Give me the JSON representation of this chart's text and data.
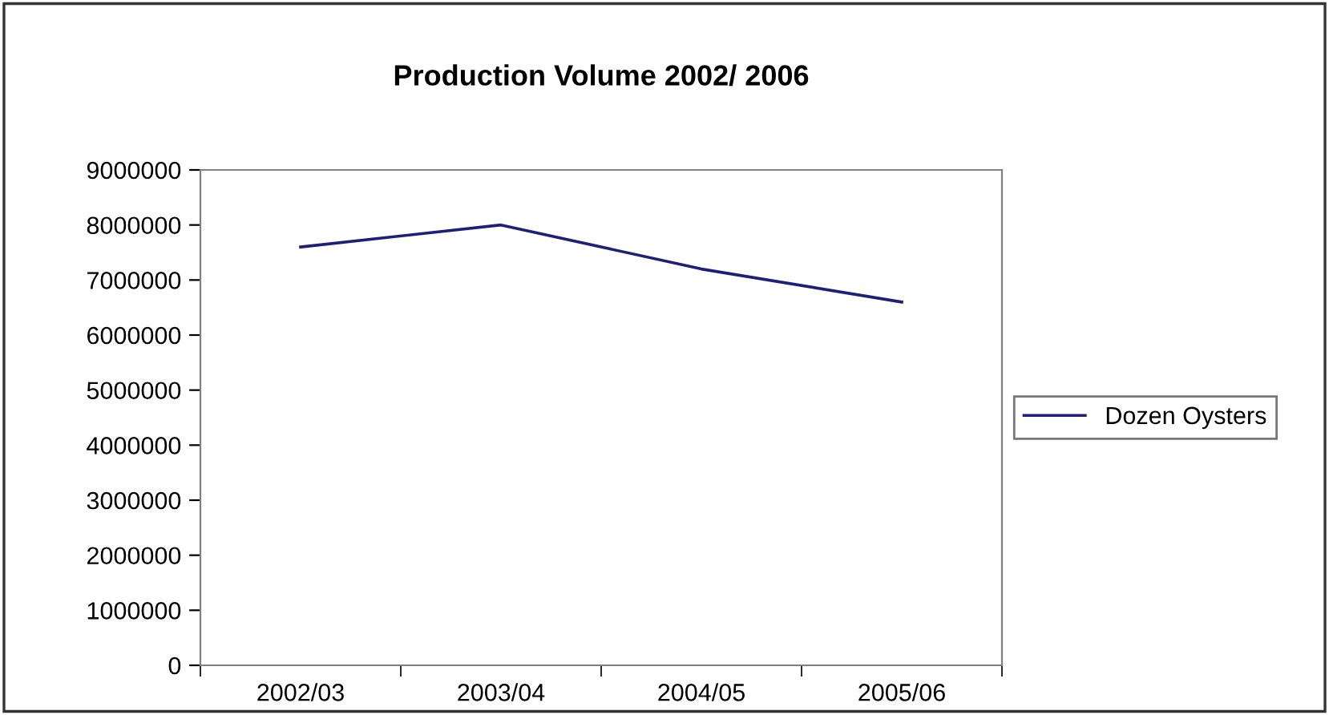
{
  "chart_data": {
    "type": "line",
    "title": "Production Volume 2002/ 2006",
    "categories": [
      "2002/03",
      "2003/04",
      "2004/05",
      "2005/06"
    ],
    "series": [
      {
        "name": "Dozen Oysters",
        "color": "#1f1f7a",
        "values": [
          7600000,
          8000000,
          7200000,
          6600000
        ]
      }
    ],
    "ylim": [
      0,
      9000000
    ],
    "yticks": [
      0,
      1000000,
      2000000,
      3000000,
      4000000,
      5000000,
      6000000,
      7000000,
      8000000,
      9000000
    ],
    "grid": false,
    "legend": "right",
    "marker": "none",
    "line_style": "solid"
  }
}
